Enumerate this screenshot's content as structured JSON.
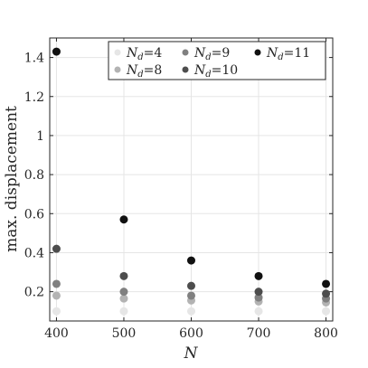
{
  "chart_data": {
    "type": "scatter",
    "xlabel": "N",
    "ylabel": "max. displacement",
    "xlim": [
      390,
      810
    ],
    "ylim": [
      0.05,
      1.5
    ],
    "xticks": [
      400,
      500,
      600,
      700,
      800
    ],
    "xtick_labels": [
      "400",
      "500",
      "600",
      "700",
      "800"
    ],
    "yticks": [
      0.2,
      0.4,
      0.6,
      0.8,
      1.0,
      1.2,
      1.4
    ],
    "ytick_labels": [
      "0.2",
      "0.4",
      "0.6",
      "0.8",
      "1",
      "1.2",
      "1.4"
    ],
    "grid": true,
    "legend_position": "top-right",
    "x": [
      400,
      500,
      600,
      700,
      800
    ],
    "series": [
      {
        "name": "N_d=4",
        "legend_var": "N",
        "legend_sub": "d",
        "legend_rest": "=4",
        "color": "#e6e6e6",
        "values": [
          0.1,
          0.1,
          0.1,
          0.1,
          0.1
        ]
      },
      {
        "name": "N_d=8",
        "legend_var": "N",
        "legend_sub": "d",
        "legend_rest": "=8",
        "color": "#b3b3b3",
        "values": [
          0.18,
          0.165,
          0.155,
          0.15,
          0.145
        ]
      },
      {
        "name": "N_d=9",
        "legend_var": "N",
        "legend_sub": "d",
        "legend_rest": "=9",
        "color": "#808080",
        "values": [
          0.24,
          0.2,
          0.18,
          0.17,
          0.165
        ]
      },
      {
        "name": "N_d=10",
        "legend_var": "N",
        "legend_sub": "d",
        "legend_rest": "=10",
        "color": "#4d4d4d",
        "values": [
          0.42,
          0.28,
          0.23,
          0.2,
          0.19
        ]
      },
      {
        "name": "N_d=11",
        "legend_var": "N",
        "legend_sub": "d",
        "legend_rest": "=11",
        "color": "#111111",
        "values": [
          1.43,
          0.57,
          0.36,
          0.28,
          0.24
        ]
      }
    ]
  }
}
